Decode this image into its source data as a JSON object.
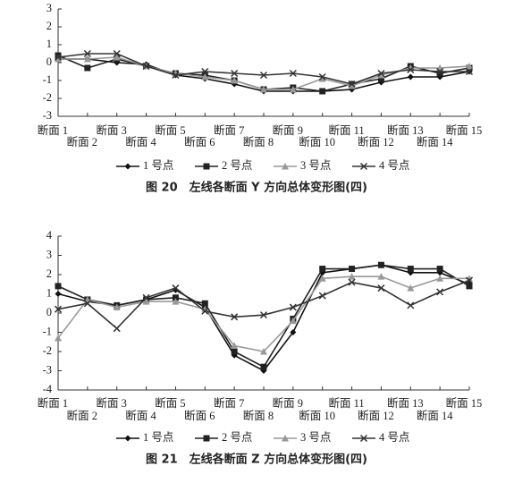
{
  "chart_data": [
    {
      "type": "line",
      "title": "图 20　左线各断面 Y 方向总体变形图(四)",
      "categories": [
        "断面 1",
        "断面 2",
        "断面 3",
        "断面 4",
        "断面 5",
        "断面 6",
        "断面 7",
        "断面 8",
        "断面 9",
        "断面 10",
        "断面 11",
        "断面 12",
        "断面 13",
        "断面 14",
        "断面 15"
      ],
      "ylim": [
        -3,
        3
      ],
      "yticks": [
        -3,
        -2,
        -1,
        0,
        1,
        2,
        3
      ],
      "series": [
        {
          "name": "1 号点",
          "color": "#111111",
          "marker": "diamond",
          "values": [
            0.2,
            0.2,
            0.0,
            -0.1,
            -0.7,
            -0.9,
            -1.2,
            -1.6,
            -1.6,
            -1.6,
            -1.5,
            -1.1,
            -0.8,
            -0.8,
            -0.5
          ]
        },
        {
          "name": "2 号点",
          "color": "#222222",
          "marker": "square",
          "values": [
            0.4,
            -0.3,
            0.2,
            -0.2,
            -0.6,
            -0.7,
            -1.0,
            -1.5,
            -1.4,
            -1.6,
            -1.2,
            -0.9,
            -0.2,
            -0.6,
            -0.3
          ]
        },
        {
          "name": "3 号点",
          "color": "#999999",
          "marker": "triangle",
          "values": [
            0.2,
            0.2,
            0.3,
            -0.2,
            -0.6,
            -0.8,
            -1.0,
            -1.5,
            -1.5,
            -0.9,
            -1.3,
            -0.7,
            -0.3,
            -0.3,
            -0.2
          ]
        },
        {
          "name": "4 号点",
          "color": "#333333",
          "marker": "cross",
          "values": [
            0.3,
            0.5,
            0.5,
            -0.2,
            -0.7,
            -0.5,
            -0.6,
            -0.7,
            -0.6,
            -0.8,
            -1.2,
            -0.6,
            -0.4,
            -0.5,
            -0.5
          ]
        }
      ]
    },
    {
      "type": "line",
      "title": "图 21　左线各断面 Z 方向总体变形图(四)",
      "categories": [
        "断面 1",
        "断面 2",
        "断面 3",
        "断面 4",
        "断面 5",
        "断面 6",
        "断面 7",
        "断面 8",
        "断面 9",
        "断面 10",
        "断面 11",
        "断面 12",
        "断面 13",
        "断面 14",
        "断面 15"
      ],
      "ylim": [
        -4,
        4
      ],
      "yticks": [
        -4,
        -3,
        -2,
        -1,
        0,
        1,
        2,
        3,
        4
      ],
      "series": [
        {
          "name": "1 号点",
          "color": "#111111",
          "marker": "diamond",
          "values": [
            1.0,
            0.6,
            0.4,
            0.7,
            1.2,
            0.3,
            -2.2,
            -3.0,
            -1.0,
            2.1,
            2.3,
            2.5,
            2.1,
            2.1,
            1.5
          ]
        },
        {
          "name": "2 号点",
          "color": "#222222",
          "marker": "square",
          "values": [
            1.4,
            0.7,
            0.4,
            0.7,
            0.8,
            0.5,
            -2.0,
            -2.8,
            -0.3,
            2.3,
            2.3,
            2.5,
            2.3,
            2.3,
            1.4
          ]
        },
        {
          "name": "3 号点",
          "color": "#999999",
          "marker": "triangle",
          "values": [
            -1.3,
            0.7,
            0.3,
            0.6,
            0.6,
            0.2,
            -1.7,
            -2.0,
            -0.4,
            1.8,
            1.9,
            1.9,
            1.3,
            1.8,
            1.8
          ]
        },
        {
          "name": "4 号点",
          "color": "#333333",
          "marker": "cross",
          "values": [
            0.2,
            0.5,
            -0.8,
            0.8,
            1.3,
            0.1,
            -0.2,
            -0.1,
            0.3,
            0.9,
            1.6,
            1.3,
            0.4,
            1.1,
            1.7
          ]
        }
      ]
    }
  ]
}
